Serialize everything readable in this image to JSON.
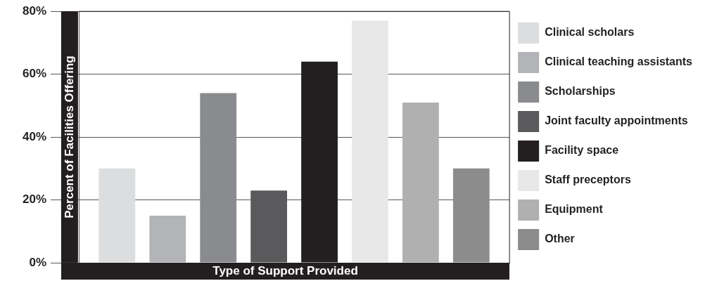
{
  "chart_data": {
    "type": "bar",
    "xlabel": "Type of Support Provided",
    "ylabel": "Percent of Facilities Offering",
    "categories": [
      null
    ],
    "series": [
      {
        "name": "Clinical scholars",
        "color": "#dcdddf",
        "values": [
          30
        ]
      },
      {
        "name": "Clinical teaching assistants",
        "color": "#b3b4b7",
        "values": [
          15
        ]
      },
      {
        "name": "Scholarships",
        "color": "#8a8b8e",
        "values": [
          54
        ]
      },
      {
        "name": "Joint faculty appointments",
        "color": "#5a5a5c",
        "values": [
          23
        ]
      },
      {
        "name": "Facility space",
        "color": "#231f20",
        "values": [
          64
        ]
      },
      {
        "name": "Staff preceptors",
        "color": "#e8e8e8",
        "values": [
          77
        ]
      },
      {
        "name": "Equipment",
        "color": "#b0b0b0",
        "values": [
          51
        ]
      },
      {
        "name": "Other",
        "color": "#8c8c8c",
        "values": [
          30
        ]
      }
    ],
    "ylim": [
      0,
      80
    ],
    "yticks": [
      {
        "value": 0,
        "label": "0%"
      },
      {
        "value": 20,
        "label": "20%"
      },
      {
        "value": 40,
        "label": "40%"
      },
      {
        "value": 60,
        "label": "60%"
      },
      {
        "value": 80,
        "label": "80%"
      }
    ],
    "grid": "y",
    "legend": "right",
    "tick_labels": "y"
  }
}
